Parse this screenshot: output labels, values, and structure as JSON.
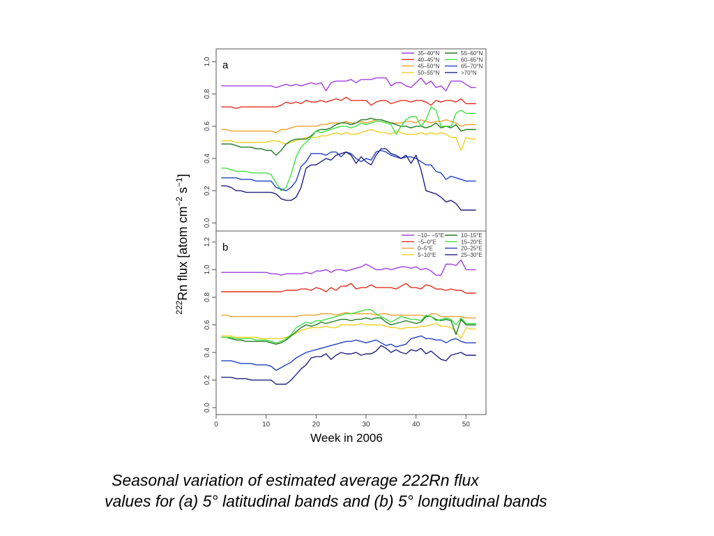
{
  "caption": {
    "line1": "Seasonal variation of estimated average 222Rn flux",
    "line2": "values for (a) 5° latitudinal bands and (b) 5° longitudinal bands"
  },
  "ylabel": {
    "sup1": "222",
    "main": "Rn flux  [atom cm",
    "sup2": "−2",
    "mid": " s",
    "sup3": "−1",
    "end": "]"
  },
  "xlabel": "Week in 2006",
  "chart_data": [
    {
      "type": "line",
      "panel_label": "a",
      "xlim": [
        0,
        54
      ],
      "ylim": [
        -0.05,
        1.08
      ],
      "yticks": [
        0.0,
        0.2,
        0.4,
        0.6,
        0.8,
        1.0
      ],
      "ytick_labels": [
        "0.0",
        "0.2",
        "0.4",
        "0.6",
        "0.8",
        "1.0"
      ],
      "legend_position": "top-right",
      "x": [
        1,
        2,
        3,
        4,
        5,
        6,
        7,
        8,
        9,
        10,
        11,
        12,
        13,
        14,
        15,
        16,
        17,
        18,
        19,
        20,
        21,
        22,
        23,
        24,
        25,
        26,
        27,
        28,
        29,
        30,
        31,
        32,
        33,
        34,
        35,
        36,
        37,
        38,
        39,
        40,
        41,
        42,
        43,
        44,
        45,
        46,
        47,
        48,
        49,
        50,
        51,
        52
      ],
      "series": [
        {
          "name": "35–40°N",
          "color": "#a040e0",
          "values": [
            0.85,
            0.85,
            0.85,
            0.85,
            0.85,
            0.85,
            0.85,
            0.85,
            0.85,
            0.85,
            0.85,
            0.84,
            0.85,
            0.86,
            0.85,
            0.86,
            0.85,
            0.86,
            0.87,
            0.86,
            0.87,
            0.82,
            0.87,
            0.88,
            0.88,
            0.88,
            0.89,
            0.87,
            0.89,
            0.89,
            0.89,
            0.9,
            0.9,
            0.9,
            0.85,
            0.87,
            0.87,
            0.85,
            0.84,
            0.87,
            0.9,
            0.86,
            0.88,
            0.84,
            0.85,
            0.82,
            0.88,
            0.88,
            0.88,
            0.86,
            0.84,
            0.84
          ]
        },
        {
          "name": "40–45°N",
          "color": "#e03020",
          "values": [
            0.72,
            0.72,
            0.72,
            0.71,
            0.72,
            0.72,
            0.72,
            0.72,
            0.72,
            0.72,
            0.72,
            0.72,
            0.73,
            0.75,
            0.74,
            0.75,
            0.74,
            0.76,
            0.75,
            0.75,
            0.76,
            0.75,
            0.76,
            0.77,
            0.76,
            0.78,
            0.76,
            0.76,
            0.76,
            0.76,
            0.73,
            0.75,
            0.76,
            0.76,
            0.74,
            0.75,
            0.76,
            0.76,
            0.75,
            0.76,
            0.76,
            0.75,
            0.73,
            0.76,
            0.75,
            0.76,
            0.76,
            0.75,
            0.77,
            0.74,
            0.74,
            0.74
          ]
        },
        {
          "name": "45–50°N",
          "color": "#f0a030",
          "values": [
            0.58,
            0.58,
            0.57,
            0.57,
            0.57,
            0.57,
            0.57,
            0.57,
            0.57,
            0.57,
            0.57,
            0.56,
            0.58,
            0.58,
            0.59,
            0.6,
            0.6,
            0.6,
            0.6,
            0.6,
            0.61,
            0.61,
            0.62,
            0.62,
            0.62,
            0.63,
            0.62,
            0.62,
            0.63,
            0.62,
            0.63,
            0.64,
            0.64,
            0.63,
            0.62,
            0.62,
            0.62,
            0.63,
            0.63,
            0.62,
            0.64,
            0.63,
            0.62,
            0.63,
            0.63,
            0.64,
            0.63,
            0.62,
            0.6,
            0.61,
            0.61,
            0.61
          ]
        },
        {
          "name": "50–55°N",
          "color": "#f0d020",
          "values": [
            0.51,
            0.51,
            0.51,
            0.5,
            0.5,
            0.5,
            0.5,
            0.5,
            0.5,
            0.5,
            0.51,
            0.51,
            0.5,
            0.49,
            0.5,
            0.51,
            0.52,
            0.53,
            0.53,
            0.53,
            0.54,
            0.54,
            0.55,
            0.56,
            0.55,
            0.56,
            0.55,
            0.55,
            0.56,
            0.57,
            0.58,
            0.57,
            0.56,
            0.56,
            0.55,
            0.57,
            0.56,
            0.55,
            0.55,
            0.55,
            0.56,
            0.55,
            0.56,
            0.55,
            0.56,
            0.55,
            0.53,
            0.53,
            0.45,
            0.53,
            0.52,
            0.52
          ]
        },
        {
          "name": "55–60°N",
          "color": "#207a20",
          "values": [
            0.49,
            0.49,
            0.49,
            0.48,
            0.47,
            0.47,
            0.47,
            0.46,
            0.46,
            0.45,
            0.45,
            0.42,
            0.45,
            0.49,
            0.51,
            0.52,
            0.52,
            0.52,
            0.54,
            0.57,
            0.58,
            0.58,
            0.59,
            0.61,
            0.62,
            0.62,
            0.61,
            0.62,
            0.64,
            0.64,
            0.65,
            0.64,
            0.64,
            0.63,
            0.62,
            0.61,
            0.6,
            0.6,
            0.59,
            0.6,
            0.6,
            0.59,
            0.6,
            0.62,
            0.59,
            0.6,
            0.59,
            0.61,
            0.57,
            0.58,
            0.58,
            0.58
          ]
        },
        {
          "name": "60–65°N",
          "color": "#40e040",
          "values": [
            0.34,
            0.34,
            0.33,
            0.32,
            0.32,
            0.32,
            0.31,
            0.31,
            0.31,
            0.31,
            0.3,
            0.25,
            0.2,
            0.22,
            0.3,
            0.41,
            0.47,
            0.5,
            0.53,
            0.57,
            0.56,
            0.57,
            0.58,
            0.59,
            0.6,
            0.6,
            0.59,
            0.6,
            0.62,
            0.61,
            0.62,
            0.63,
            0.63,
            0.62,
            0.61,
            0.55,
            0.6,
            0.64,
            0.66,
            0.66,
            0.6,
            0.64,
            0.72,
            0.7,
            0.6,
            0.6,
            0.6,
            0.68,
            0.7,
            0.68,
            0.68,
            0.68
          ]
        },
        {
          "name": "65–70°N",
          "color": "#2040c0",
          "values": [
            0.28,
            0.28,
            0.28,
            0.28,
            0.27,
            0.27,
            0.27,
            0.26,
            0.26,
            0.26,
            0.26,
            0.22,
            0.21,
            0.2,
            0.22,
            0.26,
            0.35,
            0.38,
            0.43,
            0.43,
            0.43,
            0.42,
            0.44,
            0.44,
            0.41,
            0.44,
            0.43,
            0.4,
            0.38,
            0.4,
            0.39,
            0.44,
            0.45,
            0.44,
            0.42,
            0.41,
            0.4,
            0.41,
            0.41,
            0.4,
            0.38,
            0.36,
            0.36,
            0.32,
            0.31,
            0.27,
            0.29,
            0.28,
            0.27,
            0.26,
            0.26,
            0.26
          ]
        },
        {
          "name": ">70°N",
          "color": "#202080",
          "values": [
            0.23,
            0.23,
            0.22,
            0.2,
            0.2,
            0.19,
            0.19,
            0.19,
            0.19,
            0.19,
            0.19,
            0.18,
            0.15,
            0.14,
            0.14,
            0.16,
            0.22,
            0.34,
            0.36,
            0.36,
            0.38,
            0.4,
            0.39,
            0.42,
            0.43,
            0.44,
            0.42,
            0.37,
            0.41,
            0.38,
            0.36,
            0.42,
            0.46,
            0.46,
            0.43,
            0.42,
            0.4,
            0.42,
            0.37,
            0.42,
            0.33,
            0.2,
            0.19,
            0.18,
            0.16,
            0.13,
            0.14,
            0.12,
            0.08,
            0.08,
            0.08,
            0.08
          ]
        }
      ]
    },
    {
      "type": "line",
      "panel_label": "b",
      "xlim": [
        0,
        54
      ],
      "ylim": [
        -0.05,
        1.28
      ],
      "yticks": [
        0.0,
        0.2,
        0.4,
        0.6,
        0.8,
        1.0,
        1.2
      ],
      "ytick_labels": [
        "0.0",
        "0.2",
        "0.4",
        "0.6",
        "0.8",
        "1.0",
        "1.2"
      ],
      "xticks": [
        0,
        10,
        20,
        30,
        40,
        50
      ],
      "xtick_labels": [
        "0",
        "10",
        "20",
        "30",
        "40",
        "50"
      ],
      "legend_position": "top-right",
      "x": [
        1,
        2,
        3,
        4,
        5,
        6,
        7,
        8,
        9,
        10,
        11,
        12,
        13,
        14,
        15,
        16,
        17,
        18,
        19,
        20,
        21,
        22,
        23,
        24,
        25,
        26,
        27,
        28,
        29,
        30,
        31,
        32,
        33,
        34,
        35,
        36,
        37,
        38,
        39,
        40,
        41,
        42,
        43,
        44,
        45,
        46,
        47,
        48,
        49,
        50,
        51,
        52
      ],
      "series": [
        {
          "name": "−10– −5°E",
          "color": "#a040e0",
          "values": [
            0.98,
            0.98,
            0.98,
            0.98,
            0.98,
            0.98,
            0.98,
            0.98,
            0.98,
            0.98,
            0.97,
            0.97,
            0.96,
            0.97,
            0.97,
            0.97,
            0.97,
            0.98,
            0.97,
            0.99,
            0.99,
            1.0,
            0.98,
            1.0,
            1.0,
            0.99,
            1.0,
            1.01,
            1.02,
            1.04,
            1.02,
            1.0,
            1.0,
            1.01,
            1.0,
            1.01,
            1.02,
            1.02,
            1.01,
            1.02,
            1.0,
            1.01,
            0.99,
            0.96,
            0.96,
            1.04,
            1.04,
            1.03,
            1.07,
            1.0,
            1.0,
            1.0
          ]
        },
        {
          "name": "−5–0°E",
          "color": "#e03020",
          "values": [
            0.84,
            0.84,
            0.84,
            0.84,
            0.84,
            0.84,
            0.84,
            0.84,
            0.84,
            0.84,
            0.84,
            0.84,
            0.84,
            0.85,
            0.85,
            0.85,
            0.86,
            0.86,
            0.85,
            0.87,
            0.86,
            0.84,
            0.87,
            0.85,
            0.88,
            0.88,
            0.9,
            0.86,
            0.87,
            0.87,
            0.89,
            0.87,
            0.87,
            0.87,
            0.87,
            0.86,
            0.88,
            0.9,
            0.87,
            0.87,
            0.86,
            0.89,
            0.88,
            0.86,
            0.86,
            0.85,
            0.86,
            0.85,
            0.85,
            0.83,
            0.83,
            0.83
          ]
        },
        {
          "name": "0–5°E",
          "color": "#f0a030",
          "values": [
            0.67,
            0.67,
            0.66,
            0.66,
            0.66,
            0.66,
            0.66,
            0.66,
            0.66,
            0.66,
            0.66,
            0.66,
            0.66,
            0.66,
            0.66,
            0.66,
            0.67,
            0.67,
            0.67,
            0.67,
            0.68,
            0.68,
            0.68,
            0.67,
            0.68,
            0.69,
            0.68,
            0.68,
            0.68,
            0.68,
            0.68,
            0.67,
            0.68,
            0.68,
            0.67,
            0.67,
            0.67,
            0.67,
            0.67,
            0.67,
            0.67,
            0.66,
            0.68,
            0.68,
            0.66,
            0.66,
            0.66,
            0.66,
            0.66,
            0.65,
            0.65,
            0.65
          ]
        },
        {
          "name": "5–10°E",
          "color": "#f0d020",
          "values": [
            0.52,
            0.52,
            0.52,
            0.51,
            0.51,
            0.51,
            0.51,
            0.51,
            0.5,
            0.5,
            0.5,
            0.5,
            0.5,
            0.51,
            0.52,
            0.54,
            0.56,
            0.57,
            0.58,
            0.58,
            0.58,
            0.59,
            0.58,
            0.58,
            0.6,
            0.6,
            0.6,
            0.6,
            0.61,
            0.6,
            0.6,
            0.6,
            0.6,
            0.59,
            0.58,
            0.58,
            0.57,
            0.58,
            0.58,
            0.58,
            0.59,
            0.59,
            0.6,
            0.61,
            0.59,
            0.59,
            0.58,
            0.55,
            0.5,
            0.58,
            0.57,
            0.57
          ]
        },
        {
          "name": "10–15°E",
          "color": "#207a20",
          "values": [
            0.51,
            0.51,
            0.5,
            0.49,
            0.49,
            0.48,
            0.48,
            0.48,
            0.48,
            0.48,
            0.47,
            0.46,
            0.47,
            0.49,
            0.52,
            0.55,
            0.58,
            0.6,
            0.59,
            0.6,
            0.62,
            0.61,
            0.62,
            0.63,
            0.64,
            0.64,
            0.63,
            0.64,
            0.64,
            0.65,
            0.64,
            0.65,
            0.65,
            0.62,
            0.6,
            0.61,
            0.62,
            0.63,
            0.62,
            0.61,
            0.62,
            0.66,
            0.66,
            0.64,
            0.63,
            0.64,
            0.63,
            0.53,
            0.64,
            0.6,
            0.6,
            0.6
          ]
        },
        {
          "name": "15–20°E",
          "color": "#40e040",
          "values": [
            0.51,
            0.51,
            0.51,
            0.5,
            0.5,
            0.5,
            0.5,
            0.49,
            0.49,
            0.49,
            0.48,
            0.47,
            0.48,
            0.5,
            0.53,
            0.58,
            0.6,
            0.62,
            0.61,
            0.63,
            0.63,
            0.64,
            0.65,
            0.66,
            0.67,
            0.68,
            0.68,
            0.69,
            0.7,
            0.71,
            0.71,
            0.68,
            0.66,
            0.64,
            0.62,
            0.64,
            0.66,
            0.65,
            0.64,
            0.64,
            0.63,
            0.67,
            0.66,
            0.63,
            0.64,
            0.65,
            0.64,
            0.6,
            0.65,
            0.61,
            0.61,
            0.61
          ]
        },
        {
          "name": "20–25°E",
          "color": "#2040c0",
          "values": [
            0.34,
            0.34,
            0.34,
            0.33,
            0.32,
            0.32,
            0.32,
            0.31,
            0.31,
            0.31,
            0.3,
            0.27,
            0.29,
            0.31,
            0.33,
            0.36,
            0.38,
            0.4,
            0.41,
            0.42,
            0.43,
            0.44,
            0.45,
            0.46,
            0.47,
            0.48,
            0.48,
            0.49,
            0.48,
            0.47,
            0.48,
            0.49,
            0.47,
            0.45,
            0.46,
            0.44,
            0.45,
            0.46,
            0.5,
            0.51,
            0.52,
            0.5,
            0.5,
            0.49,
            0.49,
            0.47,
            0.49,
            0.5,
            0.48,
            0.47,
            0.47,
            0.47
          ]
        },
        {
          "name": "25–30°E",
          "color": "#202080",
          "values": [
            0.22,
            0.22,
            0.22,
            0.21,
            0.21,
            0.21,
            0.2,
            0.2,
            0.2,
            0.2,
            0.2,
            0.17,
            0.17,
            0.17,
            0.2,
            0.24,
            0.28,
            0.31,
            0.36,
            0.37,
            0.37,
            0.39,
            0.35,
            0.38,
            0.4,
            0.39,
            0.39,
            0.4,
            0.38,
            0.39,
            0.39,
            0.41,
            0.45,
            0.43,
            0.4,
            0.42,
            0.4,
            0.39,
            0.42,
            0.41,
            0.43,
            0.39,
            0.41,
            0.38,
            0.35,
            0.34,
            0.38,
            0.39,
            0.4,
            0.38,
            0.38,
            0.38
          ]
        }
      ]
    }
  ]
}
